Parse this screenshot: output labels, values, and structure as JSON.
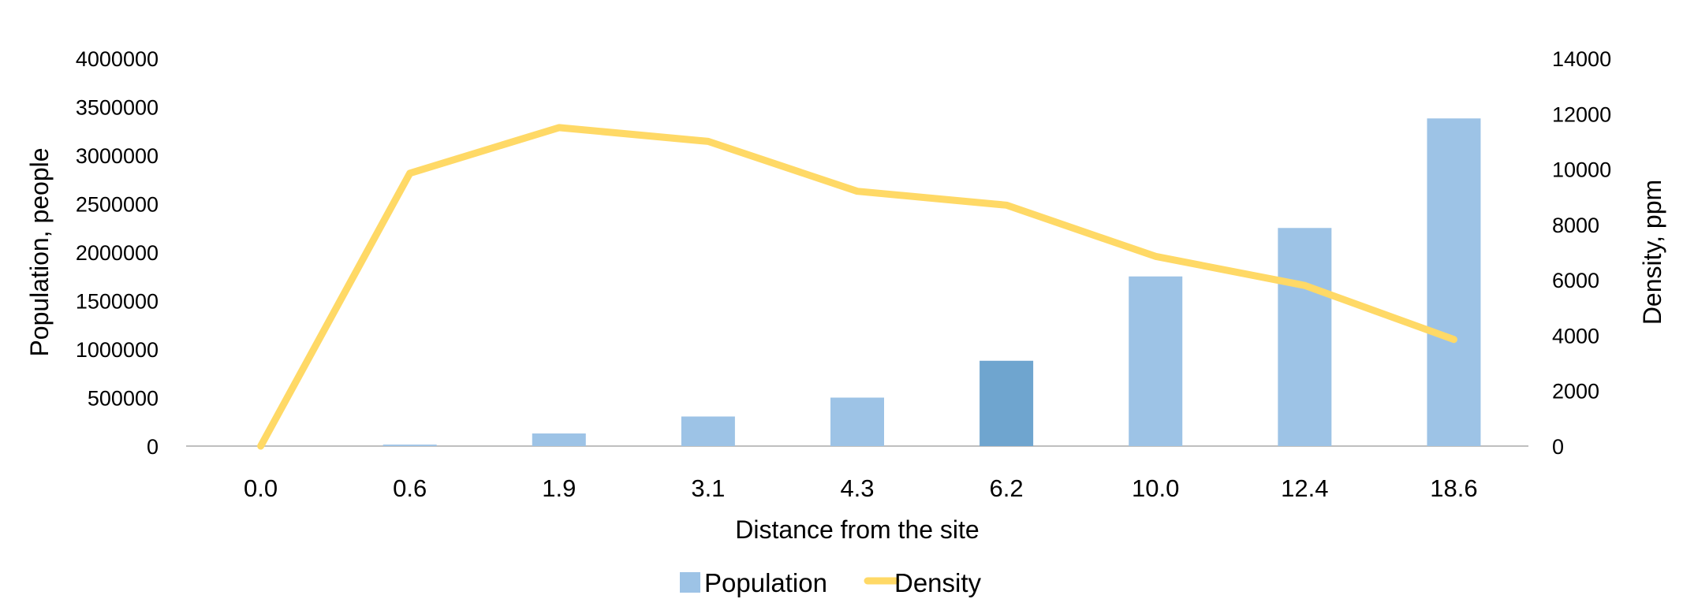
{
  "chart_data": {
    "type": "bar",
    "categories": [
      "0.0",
      "0.6",
      "1.9",
      "3.1",
      "4.3",
      "6.2",
      "10.0",
      "12.4",
      "18.6"
    ],
    "series": [
      {
        "name": "Population",
        "type": "bar",
        "axis": "left",
        "color": "#9dc3e6",
        "highlight_color": "#6fa5cf",
        "highlight_index": 5,
        "values": [
          0,
          15000,
          130000,
          305000,
          500000,
          880000,
          1750000,
          2250000,
          3380000
        ]
      },
      {
        "name": "Density",
        "type": "line",
        "axis": "right",
        "color": "#ffd966",
        "values": [
          0,
          9850,
          11500,
          11000,
          9200,
          8700,
          6850,
          5800,
          3850
        ]
      }
    ],
    "xlabel": "Distance from the site",
    "ylabel": "Population, people",
    "y2label": "Density, ppm",
    "ylim": [
      0,
      4000000
    ],
    "y2lim": [
      0,
      14000
    ],
    "yticks": [
      "0",
      "500000",
      "1000000",
      "1500000",
      "2000000",
      "2500000",
      "3000000",
      "3500000",
      "4000000"
    ],
    "y2ticks": [
      "0",
      "2000",
      "4000",
      "6000",
      "8000",
      "10000",
      "12000",
      "14000"
    ],
    "grid": false,
    "legend_position": "bottom"
  }
}
